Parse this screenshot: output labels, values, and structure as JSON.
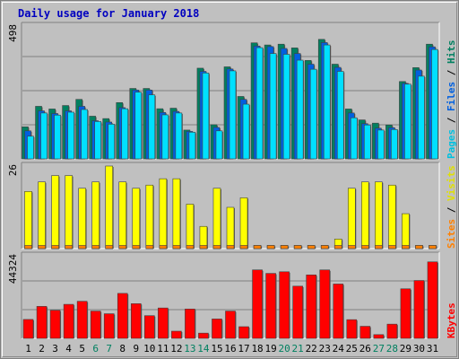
{
  "chart_data": {
    "type": "bar",
    "title": "Daily usage for January 2018",
    "categories": [
      "1",
      "2",
      "3",
      "4",
      "5",
      "6",
      "7",
      "8",
      "9",
      "10",
      "11",
      "12",
      "13",
      "14",
      "15",
      "16",
      "17",
      "18",
      "19",
      "20",
      "21",
      "22",
      "23",
      "24",
      "25",
      "26",
      "27",
      "28",
      "29",
      "30",
      "31"
    ],
    "weekend_days": [
      "6",
      "7",
      "13",
      "14",
      "20",
      "21",
      "27",
      "28"
    ],
    "panels": [
      {
        "name": "pages-files-hits",
        "axis_max_label": "498",
        "ylim": [
          0,
          498
        ],
        "right_label": [
          {
            "text": "Pages",
            "color": "#00c0e0"
          },
          {
            "text": " / ",
            "color": "#000000"
          },
          {
            "text": "Files",
            "color": "#0060e0"
          },
          {
            "text": " / ",
            "color": "#000000"
          },
          {
            "text": "Hits",
            "color": "#008060"
          }
        ],
        "series": [
          {
            "name": "Hits",
            "color": "#008060",
            "values": [
              120,
              197,
              187,
              200,
              223,
              160,
              151,
              211,
              264,
              264,
              188,
              190,
              108,
              340,
              128,
              345,
              234,
              435,
              427,
              430,
              416,
              369,
              448,
              355,
              187,
              146,
              134,
              127,
              290,
              342,
              430
            ]
          },
          {
            "name": "Files",
            "color": "#0060e0",
            "values": [
              105,
              180,
              170,
              180,
              197,
              143,
              138,
              192,
              258,
              258,
              174,
              178,
              103,
              328,
              118,
              337,
              223,
              423,
              421,
              414,
              395,
              355,
              436,
              343,
              172,
              132,
              115,
              117,
              283,
              333,
              420
            ]
          },
          {
            "name": "Pages",
            "color": "#00e0ff",
            "values": [
              85,
              172,
              164,
              175,
              185,
              140,
              130,
              188,
              250,
              240,
              165,
              172,
              100,
              322,
              105,
              330,
              205,
              417,
              395,
              392,
              370,
              336,
              427,
              328,
              154,
              127,
              108,
              110,
              280,
              310,
              410
            ]
          }
        ]
      },
      {
        "name": "sites-visits",
        "axis_max_label": "26",
        "ylim": [
          0,
          26
        ],
        "right_label": [
          {
            "text": "Sites",
            "color": "#ff8000"
          },
          {
            "text": " / ",
            "color": "#000000"
          },
          {
            "text": "Visits",
            "color": "#e0e000"
          }
        ],
        "series": [
          {
            "name": "Visits",
            "color": "#ffff00",
            "values": [
              18,
              21,
              23,
              23,
              19,
              21,
              26,
              21,
              19,
              20,
              22,
              22,
              14,
              7,
              19,
              13,
              16,
              1,
              1,
              1,
              1,
              1,
              1,
              3,
              19,
              21,
              21,
              20,
              11,
              1,
              1
            ]
          },
          {
            "name": "Sites",
            "color": "#ff8000",
            "values": [
              1,
              1,
              1,
              1,
              1,
              1,
              1,
              1,
              1,
              1,
              1,
              1,
              1,
              1,
              1,
              1,
              1,
              1,
              1,
              1,
              1,
              1,
              1,
              1,
              1,
              1,
              1,
              1,
              1,
              1,
              1
            ]
          }
        ]
      },
      {
        "name": "kbytes",
        "axis_max_label": "44324",
        "ylim": [
          0,
          44324
        ],
        "right_label": [
          {
            "text": "KBytes",
            "color": "#ff0000"
          }
        ],
        "series": [
          {
            "name": "KBytes",
            "color": "#ff0000",
            "values": [
              10154,
              17163,
              15058,
              18267,
              19904,
              14655,
              13217,
              24143,
              18618,
              12181,
              16310,
              3853,
              15760,
              2814,
              10406,
              14658,
              6264,
              36750,
              34875,
              35745,
              28021,
              34072,
              36732,
              29184,
              10047,
              6485,
              2011,
              7636,
              26606,
              31055,
              41058
            ]
          }
        ]
      }
    ]
  },
  "colors": {
    "background": "#c0c0c0",
    "weekday_label": "#000000",
    "weekend_label": "#008060"
  }
}
